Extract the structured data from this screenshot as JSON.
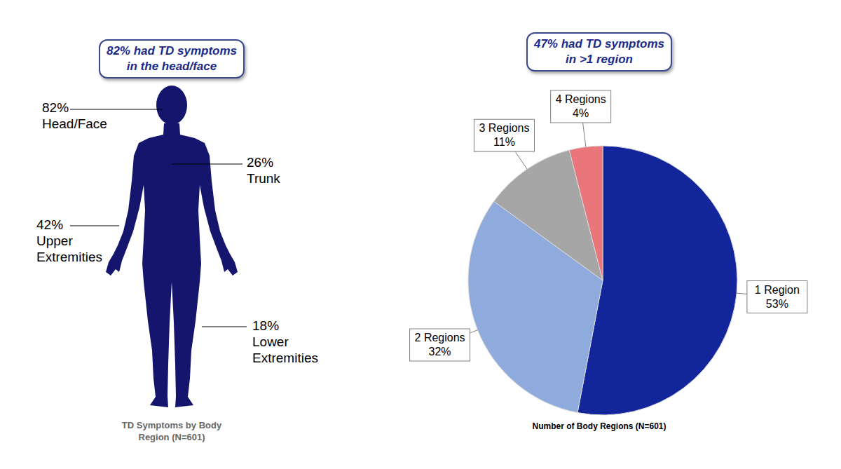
{
  "chart_data": [
    {
      "type": "body_map",
      "title": "82% had TD symptoms in the head/face",
      "subtitle": "TD Symptoms by Body Region (N=601)",
      "categories": [
        "Head/Face",
        "Trunk",
        "Upper Extremities",
        "Lower Extremities"
      ],
      "values": [
        82,
        26,
        42,
        18
      ],
      "value_labels": [
        "82%",
        "26%",
        "42%",
        "18%"
      ],
      "color": "#15156e"
    },
    {
      "type": "pie",
      "title": "47% had TD symptoms in >1 region",
      "subtitle": "Number of Body Regions (N=601)",
      "categories": [
        "1 Region",
        "2 Regions",
        "3 Regions",
        "4 Regions"
      ],
      "values": [
        53,
        32,
        11,
        4
      ],
      "value_labels": [
        "53%",
        "32%",
        "11%",
        "4%"
      ],
      "colors": [
        "#13259b",
        "#8faadc",
        "#a6a6a6",
        "#e8767a"
      ],
      "data_labels": true
    }
  ]
}
